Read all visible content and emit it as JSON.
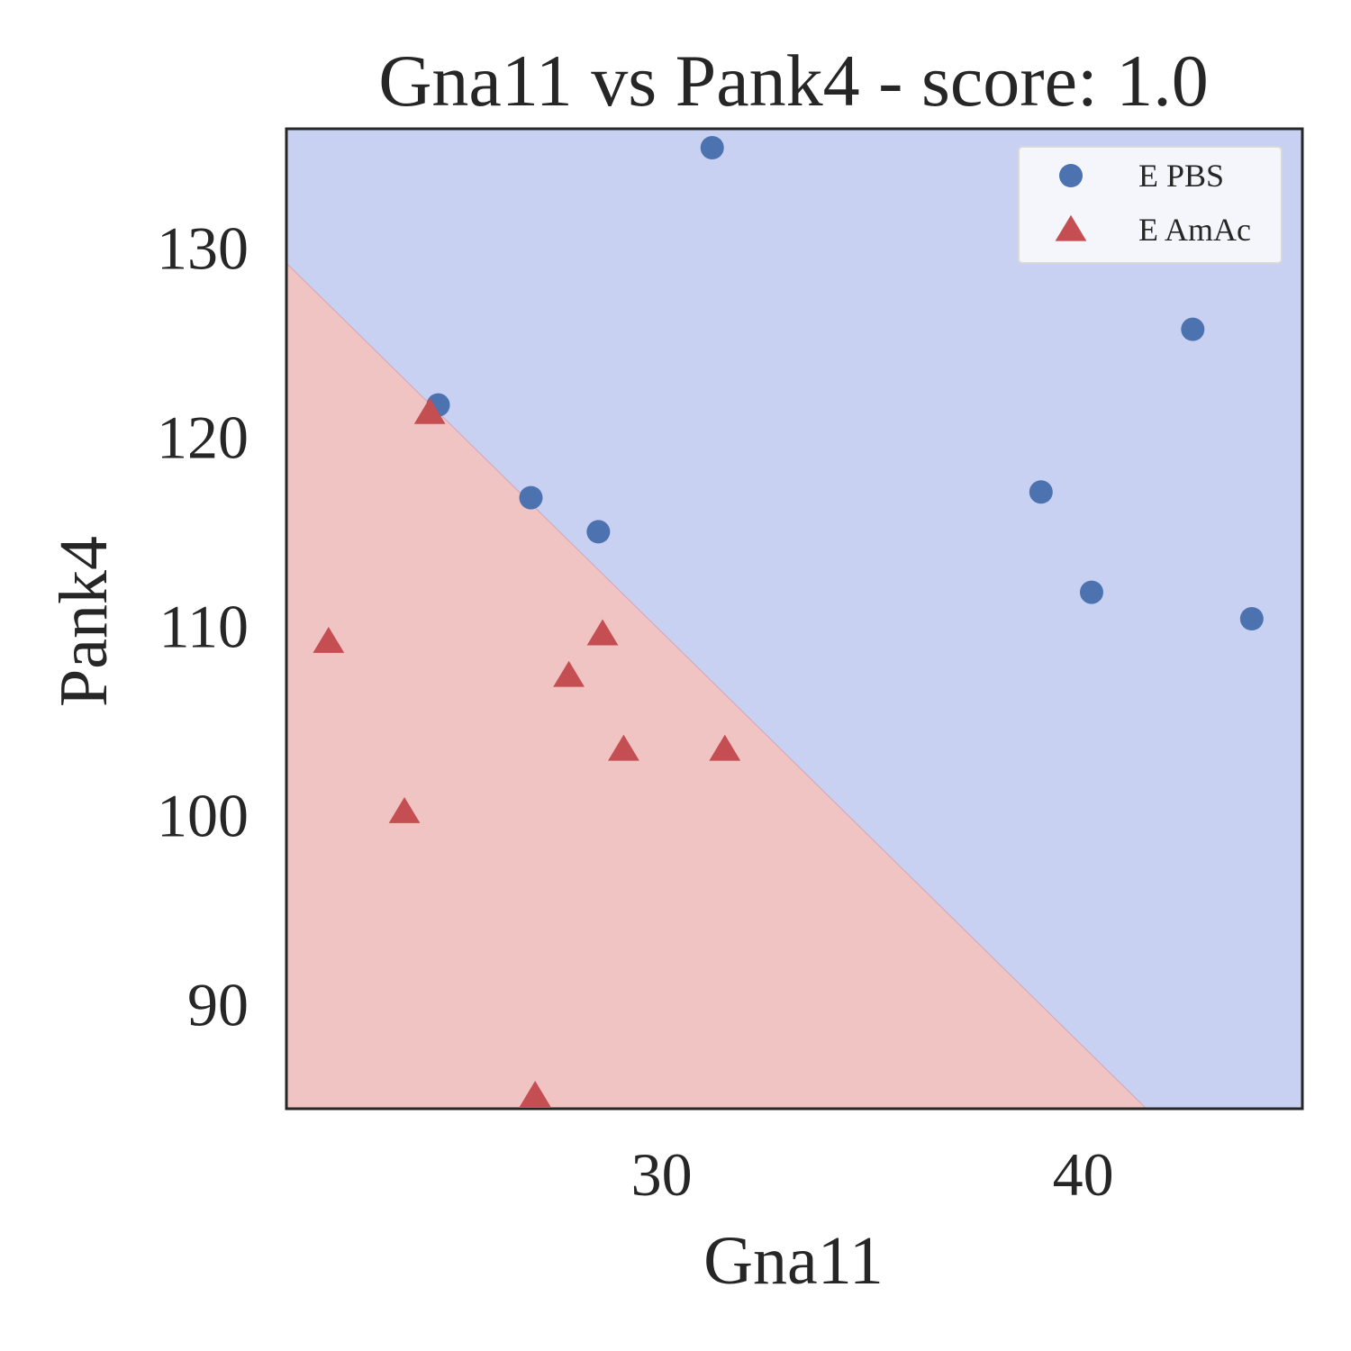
{
  "chart_data": {
    "type": "scatter",
    "title": "Gna11 vs Pank4 - score: 1.0",
    "xlabel": "Gna11",
    "ylabel": "Pank4",
    "xlim": [
      21.1,
      45.2
    ],
    "ylim": [
      84.5,
      136.3
    ],
    "xticks": [
      30,
      40
    ],
    "yticks": [
      90,
      100,
      110,
      120,
      130
    ],
    "grid": false,
    "legend_position": "top-right",
    "decision_regions": {
      "boundary": [
        [
          21.1,
          129.2
        ],
        [
          41.5,
          84.5
        ]
      ],
      "region_above_class": "E PBS",
      "region_below_class": "E AmAc",
      "colors": {
        "E PBS": "#c8d1f1",
        "E AmAc": "#efc4c3"
      }
    },
    "series": [
      {
        "name": "E PBS",
        "marker": "circle",
        "color": "#4c72b0",
        "points": [
          [
            24.7,
            121.7
          ],
          [
            26.9,
            116.8
          ],
          [
            28.5,
            115.0
          ],
          [
            31.2,
            135.3
          ],
          [
            39.0,
            117.1
          ],
          [
            40.2,
            111.8
          ],
          [
            42.6,
            125.7
          ],
          [
            44.0,
            110.4
          ]
        ]
      },
      {
        "name": "E AmAc",
        "marker": "triangle",
        "color": "#c44e52",
        "points": [
          [
            24.5,
            121.3
          ],
          [
            22.1,
            109.2
          ],
          [
            23.9,
            100.2
          ],
          [
            27.8,
            107.4
          ],
          [
            28.6,
            109.6
          ],
          [
            29.1,
            103.5
          ],
          [
            31.5,
            103.5
          ],
          [
            27.0,
            85.2
          ]
        ]
      }
    ]
  }
}
